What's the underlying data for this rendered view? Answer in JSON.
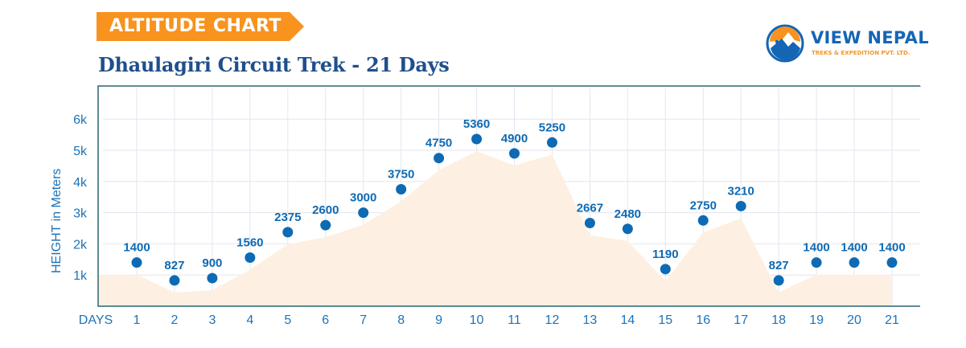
{
  "header": {
    "banner_label": "ALTITUDE CHART",
    "title": "Dhaulagiri Circuit Trek - 21 Days"
  },
  "logo": {
    "name": "VIEW NEPAL",
    "tagline": "TREKS & EXPEDITION PVT. LTD.",
    "icon": "mountain-trekker-icon"
  },
  "colors": {
    "banner": "#f7931e",
    "title": "#1f4f8c",
    "point": "#0d6ab4",
    "label": "#0d6ab4",
    "area_fill": "#fdf0e2",
    "grid": "#e3e6ef",
    "axis": "#2c6571"
  },
  "chart_data": {
    "type": "area",
    "title": "Dhaulagiri Circuit Trek - 21 Days",
    "xlabel": "DAYS",
    "ylabel": "HEIGHT in Meters",
    "categories": [
      "1",
      "2",
      "3",
      "4",
      "5",
      "6",
      "7",
      "8",
      "9",
      "10",
      "11",
      "12",
      "13",
      "14",
      "15",
      "16",
      "17",
      "18",
      "19",
      "20",
      "21"
    ],
    "values": [
      1400,
      827,
      900,
      1560,
      2375,
      2600,
      3000,
      3750,
      4750,
      5360,
      4900,
      5250,
      2667,
      2480,
      1190,
      2750,
      3210,
      827,
      1400,
      1400,
      1400
    ],
    "y_ticks": [
      "1k",
      "2k",
      "3k",
      "4k",
      "5k",
      "6k"
    ],
    "ylim": [
      0,
      7000
    ],
    "grid": true,
    "legend": null,
    "data_labels": true
  }
}
